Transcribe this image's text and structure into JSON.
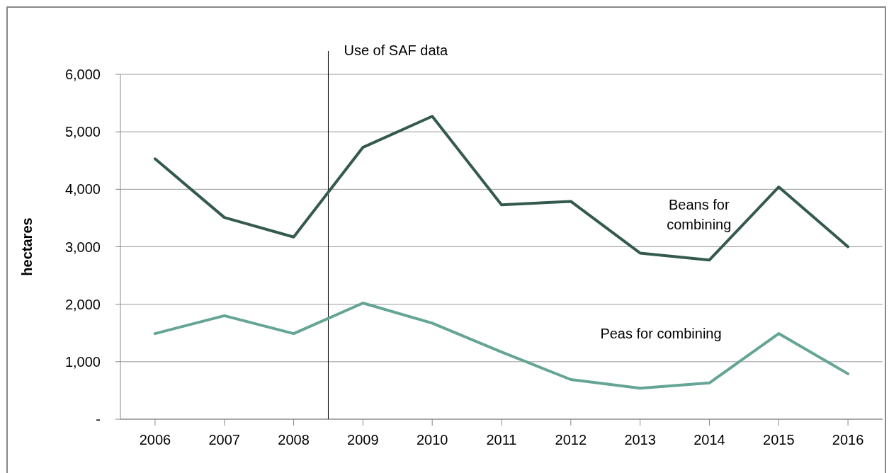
{
  "chart_data": {
    "type": "line",
    "ylabel": "hectares",
    "x": [
      2006,
      2007,
      2008,
      2009,
      2010,
      2011,
      2012,
      2013,
      2014,
      2015,
      2016
    ],
    "xlim": [
      2005.5,
      2016.5
    ],
    "xticks": [
      2006,
      2007,
      2008,
      2009,
      2010,
      2011,
      2012,
      2013,
      2014,
      2015,
      2016
    ],
    "ylim": [
      0,
      6000
    ],
    "yticks": [
      {
        "value": 0,
        "label": "-"
      },
      {
        "value": 1000,
        "label": "1,000"
      },
      {
        "value": 2000,
        "label": "2,000"
      },
      {
        "value": 3000,
        "label": "3,000"
      },
      {
        "value": 4000,
        "label": "4,000"
      },
      {
        "value": 5000,
        "label": "5,000"
      },
      {
        "value": 6000,
        "label": "6,000"
      }
    ],
    "grid": "y",
    "legend": false,
    "marker": "none",
    "line_style": "solid",
    "series": [
      {
        "name": "Beans for combining",
        "color": "#345a4f",
        "values": [
          4530,
          3510,
          3170,
          4730,
          5270,
          3730,
          3790,
          2890,
          2770,
          4040,
          3000
        ]
      },
      {
        "name": "Peas for combining",
        "color": "#65a595",
        "values": [
          1490,
          1800,
          1490,
          2020,
          1670,
          1170,
          690,
          540,
          630,
          1490,
          790
        ]
      }
    ],
    "ref_lines": [
      {
        "axis": "x",
        "value": 2008.5,
        "label": "Use of SAF data",
        "color": "#000000"
      }
    ]
  }
}
